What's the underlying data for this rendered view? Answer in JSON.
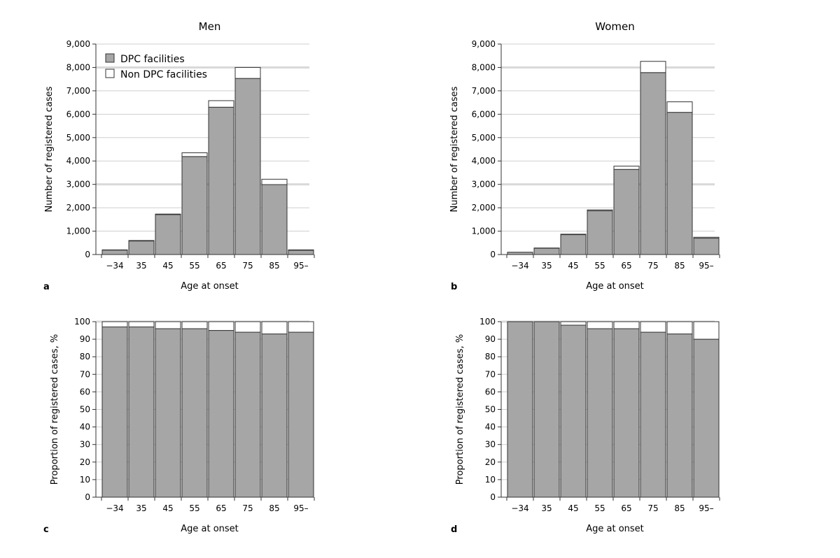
{
  "colors": {
    "dpc": "#a6a6a6",
    "non_dpc": "#ffffff",
    "stroke": "#333333",
    "grid": "#cfcfcf",
    "grid_strong": "#d9d9d9"
  },
  "legend": {
    "dpc_label": "DPC facilities",
    "non_dpc_label": "Non DPC facilities",
    "placement": "top-left"
  },
  "chart_data": [
    {
      "type": "bar",
      "stacked": true,
      "panel_letter": "a",
      "title": "Men",
      "xlabel": "Age at onset",
      "ylabel": "Number of registered cases",
      "categories": [
        "−34",
        "35",
        "45",
        "55",
        "65",
        "75",
        "85",
        "95–"
      ],
      "ylim": [
        0,
        9000
      ],
      "yticks": [
        0,
        1000,
        2000,
        3000,
        4000,
        5000,
        6000,
        7000,
        8000,
        9000
      ],
      "yticklabels": [
        "0",
        "1,000",
        "2,000",
        "3,000",
        "4,000",
        "5,000",
        "6,000",
        "7,000",
        "8,000",
        "9,000"
      ],
      "grid": true,
      "series": [
        {
          "name": "DPC facilities",
          "values": [
            190,
            580,
            1710,
            4190,
            6300,
            7530,
            2990,
            180
          ]
        },
        {
          "name": "Non DPC facilities",
          "values": [
            10,
            20,
            20,
            160,
            280,
            470,
            230,
            20
          ]
        }
      ]
    },
    {
      "type": "bar",
      "stacked": true,
      "panel_letter": "b",
      "title": "Women",
      "xlabel": "Age at onset",
      "ylabel": "Number of registered cases",
      "categories": [
        "−34",
        "35",
        "45",
        "55",
        "65",
        "75",
        "85",
        "95–"
      ],
      "ylim": [
        0,
        9000
      ],
      "yticks": [
        0,
        1000,
        2000,
        3000,
        4000,
        5000,
        6000,
        7000,
        8000,
        9000
      ],
      "yticklabels": [
        "0",
        "1,000",
        "2,000",
        "3,000",
        "4,000",
        "5,000",
        "6,000",
        "7,000",
        "8,000",
        "9,000"
      ],
      "grid": true,
      "series": [
        {
          "name": "DPC facilities",
          "values": [
            100,
            270,
            850,
            1870,
            3640,
            7780,
            6080,
            700
          ]
        },
        {
          "name": "Non DPC facilities",
          "values": [
            0,
            10,
            20,
            40,
            140,
            480,
            450,
            40
          ]
        }
      ]
    },
    {
      "type": "bar",
      "stacked": true,
      "panel_letter": "c",
      "title": "",
      "xlabel": "Age at onset",
      "ylabel": "Proportion of registered cases, %",
      "categories": [
        "−34",
        "35",
        "45",
        "55",
        "65",
        "75",
        "85",
        "95–"
      ],
      "ylim": [
        0,
        100
      ],
      "yticks": [
        0,
        10,
        20,
        30,
        40,
        50,
        60,
        70,
        80,
        90,
        100
      ],
      "yticklabels": [
        "0",
        "10",
        "20",
        "30",
        "40",
        "50",
        "60",
        "70",
        "80",
        "90",
        "100"
      ],
      "grid": true,
      "series": [
        {
          "name": "DPC facilities",
          "values": [
            97,
            97,
            96,
            96,
            95,
            94,
            93,
            94
          ]
        },
        {
          "name": "Non DPC facilities",
          "values": [
            3,
            3,
            4,
            4,
            5,
            6,
            7,
            6
          ]
        }
      ]
    },
    {
      "type": "bar",
      "stacked": true,
      "panel_letter": "d",
      "title": "",
      "xlabel": "Age at onset",
      "ylabel": "Proportion of registered cases, %",
      "categories": [
        "−34",
        "35",
        "45",
        "55",
        "65",
        "75",
        "85",
        "95–"
      ],
      "ylim": [
        0,
        100
      ],
      "yticks": [
        0,
        10,
        20,
        30,
        40,
        50,
        60,
        70,
        80,
        90,
        100
      ],
      "yticklabels": [
        "0",
        "10",
        "20",
        "30",
        "40",
        "50",
        "60",
        "70",
        "80",
        "90",
        "100"
      ],
      "grid": true,
      "series": [
        {
          "name": "DPC facilities",
          "values": [
            100,
            100,
            98,
            96,
            96,
            94,
            93,
            90
          ]
        },
        {
          "name": "Non DPC facilities",
          "values": [
            0,
            0,
            2,
            4,
            4,
            6,
            7,
            10
          ]
        }
      ]
    }
  ]
}
